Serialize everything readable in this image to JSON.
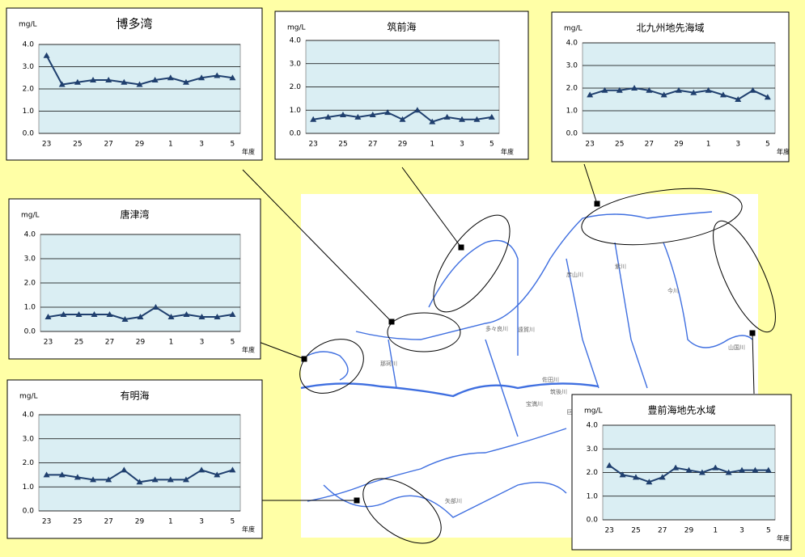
{
  "chart_data": [
    {
      "type": "line",
      "title": "博多湾",
      "y_label": "mg/L",
      "x_label": "年度",
      "categories": [
        "23",
        null,
        "25",
        null,
        "27",
        null,
        "29",
        null,
        "1",
        null,
        "3",
        null,
        "5"
      ],
      "values": [
        3.5,
        2.2,
        2.3,
        2.4,
        2.4,
        2.3,
        2.2,
        2.4,
        2.5,
        2.3,
        2.5,
        2.6,
        2.5
      ],
      "color": "#1f3f6e",
      "ylim": [
        0,
        4
      ],
      "yticks": [
        {
          "value": 0,
          "label": "0.0"
        },
        {
          "value": 1,
          "label": "1.0"
        },
        {
          "value": 2,
          "label": "2.0"
        },
        {
          "value": 3,
          "label": "3.0"
        },
        {
          "value": 4,
          "label": "4.0"
        }
      ],
      "grid": true
    },
    {
      "type": "line",
      "title": "筑前海",
      "y_label": "mg/L",
      "x_label": "年度",
      "categories": [
        "23",
        null,
        "25",
        null,
        "27",
        null,
        "29",
        null,
        "1",
        null,
        "3",
        null,
        "5"
      ],
      "values": [
        0.6,
        0.7,
        0.8,
        0.7,
        0.8,
        0.9,
        0.6,
        1.0,
        0.5,
        0.7,
        0.6,
        0.6,
        0.7
      ],
      "color": "#1f3f6e",
      "ylim": [
        0,
        4
      ],
      "yticks": [
        {
          "value": 0,
          "label": "0.0"
        },
        {
          "value": 1,
          "label": "1.0"
        },
        {
          "value": 2,
          "label": "2.0"
        },
        {
          "value": 3,
          "label": "3.0"
        },
        {
          "value": 4,
          "label": "4.0"
        }
      ],
      "grid": true
    },
    {
      "type": "line",
      "title": "北九州地先海域",
      "y_label": "mg/L",
      "x_label": "年度",
      "categories": [
        "23",
        null,
        "25",
        null,
        "27",
        null,
        "29",
        null,
        "1",
        null,
        "3",
        null,
        "5"
      ],
      "values": [
        1.7,
        1.9,
        1.9,
        2.0,
        1.9,
        1.7,
        1.9,
        1.8,
        1.9,
        1.7,
        1.5,
        1.9,
        1.6
      ],
      "color": "#1f3f6e",
      "ylim": [
        0,
        4
      ],
      "yticks": [
        {
          "value": 0,
          "label": "0.0"
        },
        {
          "value": 1,
          "label": "1.0"
        },
        {
          "value": 2,
          "label": "2.0"
        },
        {
          "value": 3,
          "label": "3.0"
        },
        {
          "value": 4,
          "label": "4.0"
        }
      ],
      "grid": true
    },
    {
      "type": "line",
      "title": "唐津湾",
      "y_label": "mg/L",
      "x_label": "年度",
      "categories": [
        "23",
        null,
        "25",
        null,
        "27",
        null,
        "29",
        null,
        "1",
        null,
        "3",
        null,
        "5"
      ],
      "values": [
        0.6,
        0.7,
        0.7,
        0.7,
        0.7,
        0.5,
        0.6,
        1.0,
        0.6,
        0.7,
        0.6,
        0.6,
        0.7
      ],
      "color": "#1f3f6e",
      "ylim": [
        0,
        4
      ],
      "yticks": [
        {
          "value": 0,
          "label": "0.0"
        },
        {
          "value": 1,
          "label": "1.0"
        },
        {
          "value": 2,
          "label": "2.0"
        },
        {
          "value": 3,
          "label": "3.0"
        },
        {
          "value": 4,
          "label": "4.0"
        }
      ],
      "grid": true
    },
    {
      "type": "line",
      "title": "有明海",
      "y_label": "mg/L",
      "x_label": "年度",
      "categories": [
        "23",
        null,
        "25",
        null,
        "27",
        null,
        "29",
        null,
        "1",
        null,
        "3",
        null,
        "5"
      ],
      "values": [
        1.5,
        1.5,
        1.4,
        1.3,
        1.3,
        1.7,
        1.2,
        1.3,
        1.3,
        1.3,
        1.7,
        1.5,
        1.7
      ],
      "color": "#1f3f6e",
      "ylim": [
        0,
        4
      ],
      "yticks": [
        {
          "value": 0,
          "label": "0.0"
        },
        {
          "value": 1,
          "label": "1.0"
        },
        {
          "value": 2,
          "label": "2.0"
        },
        {
          "value": 3,
          "label": "3.0"
        },
        {
          "value": 4,
          "label": "4.0"
        }
      ],
      "grid": true
    },
    {
      "type": "line",
      "title": "豊前海地先水域",
      "y_label": "mg/L",
      "x_label": "年度",
      "categories": [
        "23",
        null,
        "25",
        null,
        "27",
        null,
        "29",
        null,
        "1",
        null,
        "3",
        null,
        "5"
      ],
      "values": [
        2.3,
        1.9,
        1.8,
        1.6,
        1.8,
        2.2,
        2.1,
        2.0,
        2.2,
        2.0,
        2.1,
        2.1,
        2.1
      ],
      "color": "#1f3f6e",
      "ylim": [
        0,
        4
      ],
      "yticks": [
        {
          "value": 0,
          "label": "0.0"
        },
        {
          "value": 1,
          "label": "1.0"
        },
        {
          "value": 2,
          "label": "2.0"
        },
        {
          "value": 3,
          "label": "3.0"
        },
        {
          "value": 4,
          "label": "4.0"
        }
      ],
      "grid": true
    }
  ],
  "map": {
    "labels": [
      "多々良川",
      "那珂川",
      "遠賀川",
      "紫川",
      "今川",
      "彦山川",
      "宝満川",
      "筑後川",
      "巨瀬川",
      "佐田川",
      "矢部川",
      "山国川"
    ]
  }
}
